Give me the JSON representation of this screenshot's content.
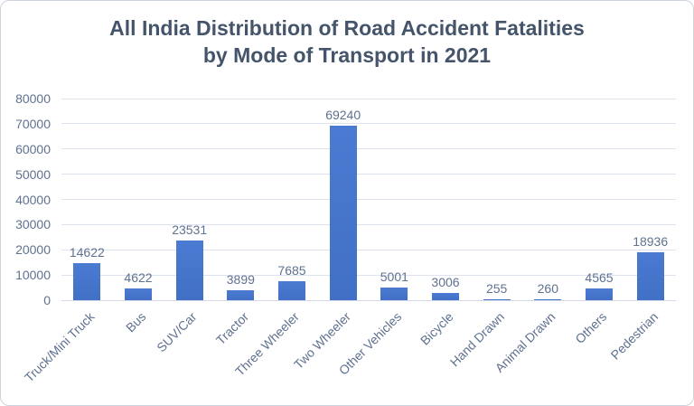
{
  "title": {
    "lines": [
      "All India Distribution of Road Accident Fatalities",
      "by Mode of Transport in 2021"
    ]
  },
  "chart_data": {
    "type": "bar",
    "title": "All India Distribution of Road Accident Fatalities by Mode of Transport in 2021",
    "categories": [
      "Truck/Mini Truck",
      "Bus",
      "SUV/Car",
      "Tractor",
      "Three Wheeler",
      "Two Wheeler",
      "Other Vehicles",
      "Bicycle",
      "Hand Drawn",
      "Animal Drawn",
      "Others",
      "Pedestrian"
    ],
    "values": [
      14622,
      4622,
      23531,
      3899,
      7685,
      69240,
      5001,
      3006,
      255,
      260,
      4565,
      18936
    ],
    "xlabel": "",
    "ylabel": "",
    "ylim": [
      0,
      80000
    ],
    "ytick_step": 10000,
    "yticks": [
      "0",
      "10000",
      "20000",
      "30000",
      "40000",
      "50000",
      "60000",
      "70000",
      "80000"
    ],
    "grid": true,
    "legend": "none",
    "data_labels": true,
    "x_label_rotation_deg": 45,
    "colors": {
      "bar": "#4472c4",
      "bar_gradient_top": "#4b7ad2",
      "bar_gradient_bottom": "#4170c6",
      "title_text": "#44546a",
      "axis_and_data_labels": "#5f7190",
      "gridline": "#dde3ec",
      "axis_line": "#d4dbe6",
      "frame_border": "#ccd3dd",
      "background": "#ffffff"
    }
  }
}
